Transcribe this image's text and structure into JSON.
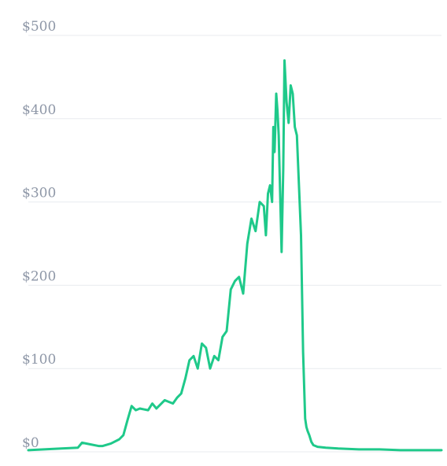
{
  "chart_data": {
    "type": "line",
    "title": "",
    "xlabel": "",
    "ylabel": "",
    "ylim": [
      0,
      500
    ],
    "y_ticks": [
      {
        "value": 0,
        "label": "$0"
      },
      {
        "value": 100,
        "label": "$100"
      },
      {
        "value": 200,
        "label": "$200"
      },
      {
        "value": 300,
        "label": "$300"
      },
      {
        "value": 400,
        "label": "$400"
      },
      {
        "value": 500,
        "label": "$500"
      }
    ],
    "grid": true,
    "legend": "none",
    "color": "#1fc98a",
    "x": [
      0,
      8,
      12,
      13,
      15,
      17,
      18,
      20,
      22,
      23,
      24,
      25,
      26,
      27,
      28,
      29,
      30,
      31,
      32,
      33,
      34,
      35,
      36,
      37,
      38,
      39,
      40,
      41,
      42,
      43,
      44,
      45,
      46,
      47,
      48,
      49,
      50,
      51,
      52,
      53,
      54,
      55,
      56,
      57,
      57.5,
      58,
      58.5,
      59,
      59.3,
      59.6,
      60,
      60.3,
      60.6,
      61,
      61.3,
      61.7,
      62,
      62.5,
      63,
      63.5,
      64,
      64.5,
      65,
      65.5,
      66,
      66.5,
      67,
      67.3,
      67.6,
      68,
      68.5,
      69,
      70,
      72,
      75,
      80,
      85,
      90,
      95,
      100
    ],
    "series": [
      {
        "values": [
          2,
          4,
          5,
          11,
          9,
          7,
          7,
          10,
          15,
          20,
          38,
          55,
          50,
          52,
          51,
          50,
          58,
          52,
          57,
          62,
          60,
          58,
          65,
          70,
          88,
          110,
          115,
          100,
          130,
          125,
          100,
          115,
          110,
          138,
          145,
          195,
          205,
          210,
          190,
          250,
          280,
          265,
          300,
          295,
          260,
          310,
          320,
          300,
          390,
          360,
          430,
          410,
          380,
          300,
          240,
          340,
          470,
          420,
          395,
          440,
          430,
          390,
          380,
          320,
          260,
          120,
          40,
          30,
          25,
          20,
          12,
          8,
          6,
          5,
          4,
          3,
          3,
          2,
          2,
          2
        ]
      }
    ]
  }
}
